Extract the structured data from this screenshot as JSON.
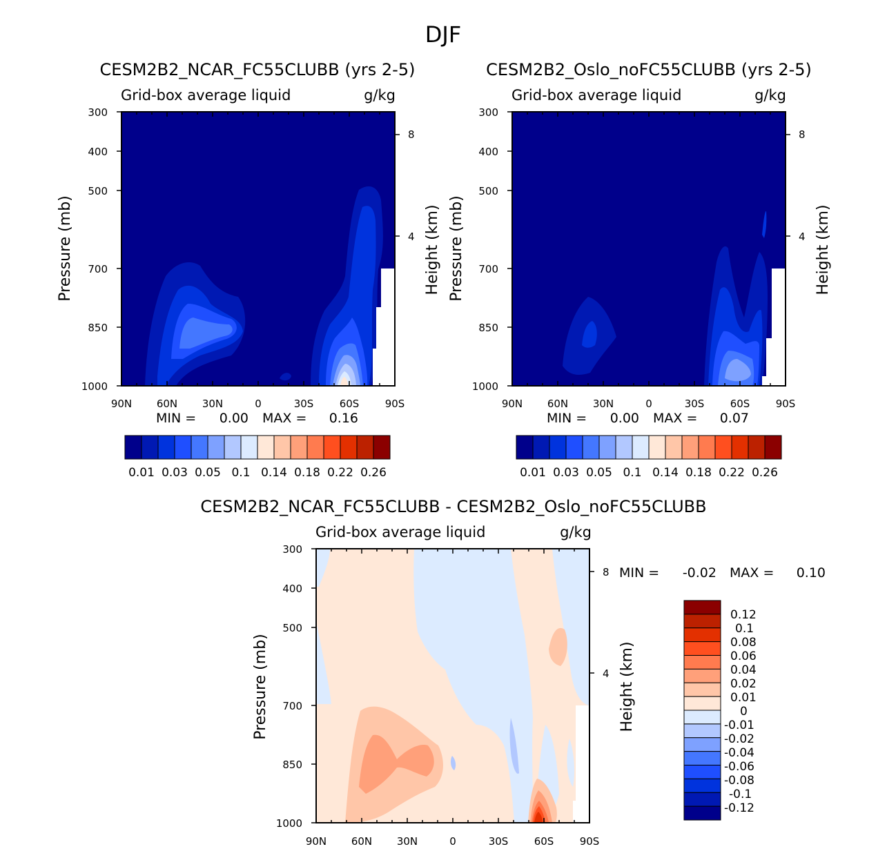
{
  "figure_title": "DJF",
  "chart_data": [
    {
      "type": "heatmap",
      "title": "CESM2B2_NCAR_FC55CLUBB (yrs 2-5)",
      "subtitle_left": "Grid-box average liquid",
      "subtitle_right": "g/kg",
      "ylabel": "Pressure (mb)",
      "y2label": "Height (km)",
      "x_ticks": [
        "90N",
        "60N",
        "30N",
        "0",
        "30S",
        "60S",
        "90S"
      ],
      "y_ticks": [
        "300",
        "400",
        "500",
        "700",
        "850",
        "1000"
      ],
      "y2_ticks": [
        "8",
        "4"
      ],
      "stats": {
        "min_label": "MIN =",
        "min": "0.00",
        "max_label": "MAX =",
        "max": "0.16"
      },
      "colorbar_labels": [
        "0.01",
        "0.03",
        "0.05",
        "0.1",
        "0.14",
        "0.18",
        "0.22",
        "0.26"
      ],
      "colorbar_colors": [
        "#00008b",
        "#0019b3",
        "#0033dd",
        "#1f4fff",
        "#4477ff",
        "#7ea1ff",
        "#b2c8ff",
        "#dcebff",
        "#ffe8d8",
        "#ffc6a8",
        "#ffa07a",
        "#ff7b4f",
        "#ff4f1f",
        "#e33000",
        "#bc2100",
        "#8b0000"
      ],
      "features": [
        {
          "lat": -55,
          "p": 960,
          "value": 0.16
        },
        {
          "lat": 40,
          "p": 840,
          "value": 0.06
        },
        {
          "lat": -55,
          "p": 600,
          "value": 0.02
        }
      ]
    },
    {
      "type": "heatmap",
      "title": "CESM2B2_Oslo_noFC55CLUBB (yrs 2-5)",
      "subtitle_left": "Grid-box average liquid",
      "subtitle_right": "g/kg",
      "ylabel": "Pressure (mb)",
      "y2label": "Height (km)",
      "x_ticks": [
        "90N",
        "60N",
        "30N",
        "0",
        "30S",
        "60S",
        "90S"
      ],
      "y_ticks": [
        "300",
        "400",
        "500",
        "700",
        "850",
        "1000"
      ],
      "y2_ticks": [
        "8",
        "4"
      ],
      "stats": {
        "min_label": "MIN =",
        "min": "0.00",
        "max_label": "MAX =",
        "max": "0.07"
      },
      "colorbar_labels": [
        "0.01",
        "0.03",
        "0.05",
        "0.1",
        "0.14",
        "0.18",
        "0.22",
        "0.26"
      ],
      "colorbar_colors": [
        "#00008b",
        "#0019b3",
        "#0033dd",
        "#1f4fff",
        "#4477ff",
        "#7ea1ff",
        "#b2c8ff",
        "#dcebff",
        "#ffe8d8",
        "#ffc6a8",
        "#ffa07a",
        "#ff7b4f",
        "#ff4f1f",
        "#e33000",
        "#bc2100",
        "#8b0000"
      ],
      "features": [
        {
          "lat": -58,
          "p": 930,
          "value": 0.07
        },
        {
          "lat": 40,
          "p": 850,
          "value": 0.03
        }
      ]
    },
    {
      "type": "heatmap",
      "title": "CESM2B2_NCAR_FC55CLUBB - CESM2B2_Oslo_noFC55CLUBB",
      "subtitle_left": "Grid-box average liquid",
      "subtitle_right": "g/kg",
      "ylabel": "Pressure (mb)",
      "y2label": "Height (km)",
      "x_ticks": [
        "90N",
        "60N",
        "30N",
        "0",
        "30S",
        "60S",
        "90S"
      ],
      "y_ticks": [
        "300",
        "400",
        "500",
        "700",
        "850",
        "1000"
      ],
      "y2_ticks": [
        "8",
        "4"
      ],
      "stats": {
        "min_label": "MIN =",
        "min": "-0.02",
        "max_label": "MAX =",
        "max": "0.10"
      },
      "colorbar_labels": [
        "0.12",
        "0.1",
        "0.08",
        "0.06",
        "0.04",
        "0.02",
        "0.01",
        "0",
        "-0.01",
        "-0.02",
        "-0.04",
        "-0.06",
        "-0.08",
        "-0.1",
        "-0.12"
      ],
      "colorbar_colors": [
        "#8b0000",
        "#bc2100",
        "#e33000",
        "#ff4f1f",
        "#ff7b4f",
        "#ffa07a",
        "#ffc6a8",
        "#ffe8d8",
        "#dcebff",
        "#b2c8ff",
        "#7ea1ff",
        "#4477ff",
        "#1f4fff",
        "#0033dd",
        "#0019b3",
        "#00008b"
      ],
      "features": [
        {
          "lat": -55,
          "p": 980,
          "value": 0.1
        },
        {
          "lat": 45,
          "p": 830,
          "value": 0.02
        },
        {
          "lat": -40,
          "p": 800,
          "value": -0.02
        }
      ]
    }
  ]
}
